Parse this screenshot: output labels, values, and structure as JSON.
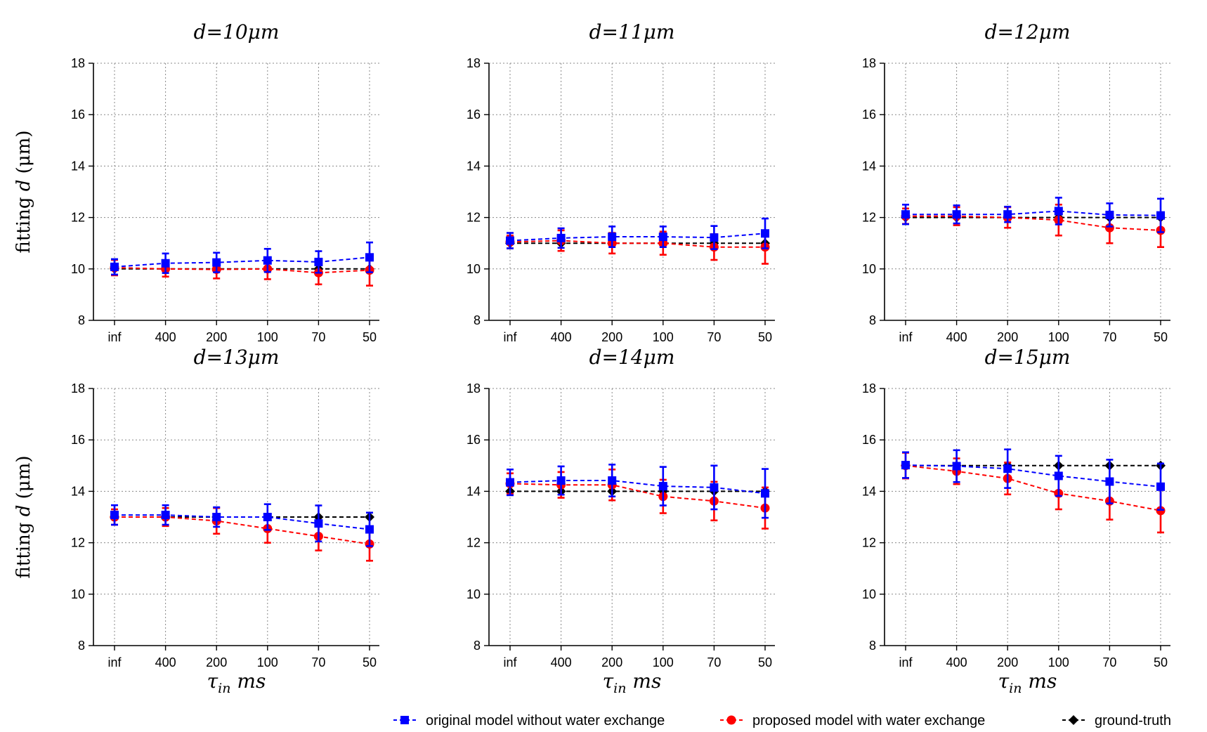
{
  "chart_data": {
    "type": "line",
    "x_categories": [
      "inf",
      "400",
      "200",
      "100",
      "70",
      "50"
    ],
    "ylim": [
      8,
      18
    ],
    "yticks": [
      "8",
      "10",
      "12",
      "14",
      "16",
      "18"
    ],
    "ylabel_prefix": "fitting ",
    "ylabel_var": "d",
    "ylabel_unit": " (μm)",
    "xlabel": "τ",
    "xlabel_sub": "in",
    "xlabel_unit": " ms",
    "grid": true,
    "legend": [
      {
        "key": "original",
        "label": "original model without water exchange",
        "color": "#0000ff",
        "marker": "square"
      },
      {
        "key": "proposed",
        "label": "proposed model with water exchange",
        "color": "#ff0000",
        "marker": "circle"
      },
      {
        "key": "truth",
        "label": "ground-truth",
        "color": "#000000",
        "marker": "diamond"
      }
    ],
    "panels": [
      {
        "title_var": "d",
        "title_rest": "=10μm",
        "series": [
          {
            "key": "original",
            "values": [
              10.08,
              10.22,
              10.25,
              10.33,
              10.27,
              10.45
            ],
            "errors": [
              0.3,
              0.38,
              0.38,
              0.45,
              0.42,
              0.58
            ]
          },
          {
            "key": "proposed",
            "values": [
              10.05,
              10.0,
              9.98,
              10.0,
              9.85,
              9.95
            ],
            "errors": [
              0.3,
              0.3,
              0.35,
              0.4,
              0.45,
              0.6
            ]
          },
          {
            "key": "truth",
            "values": [
              10,
              10,
              10,
              10,
              10,
              10
            ],
            "errors": [
              0,
              0,
              0,
              0,
              0,
              0
            ]
          }
        ]
      },
      {
        "title_var": "d",
        "title_rest": "=11μm",
        "series": [
          {
            "key": "original",
            "values": [
              11.1,
              11.2,
              11.25,
              11.25,
              11.22,
              11.38
            ],
            "errors": [
              0.3,
              0.38,
              0.4,
              0.4,
              0.45,
              0.58
            ]
          },
          {
            "key": "proposed",
            "values": [
              11.05,
              11.1,
              11.0,
              11.0,
              10.85,
              10.85
            ],
            "errors": [
              0.25,
              0.4,
              0.4,
              0.45,
              0.5,
              0.65
            ]
          },
          {
            "key": "truth",
            "values": [
              11,
              11,
              11,
              11,
              11,
              11
            ],
            "errors": [
              0,
              0,
              0,
              0,
              0,
              0
            ]
          }
        ]
      },
      {
        "title_var": "d",
        "title_rest": "=12μm",
        "series": [
          {
            "key": "original",
            "values": [
              12.12,
              12.12,
              12.12,
              12.25,
              12.1,
              12.08
            ],
            "errors": [
              0.38,
              0.35,
              0.3,
              0.52,
              0.45,
              0.65
            ]
          },
          {
            "key": "proposed",
            "values": [
              12.05,
              12.05,
              12.0,
              11.9,
              11.6,
              11.5
            ],
            "errors": [
              0.3,
              0.35,
              0.4,
              0.6,
              0.6,
              0.65
            ]
          },
          {
            "key": "truth",
            "values": [
              12,
              12,
              12,
              12,
              12,
              12
            ],
            "errors": [
              0,
              0,
              0,
              0,
              0,
              0
            ]
          }
        ]
      },
      {
        "title_var": "d",
        "title_rest": "=13μm",
        "series": [
          {
            "key": "original",
            "values": [
              13.08,
              13.08,
              13.0,
              13.0,
              12.75,
              12.52
            ],
            "errors": [
              0.38,
              0.38,
              0.38,
              0.5,
              0.7,
              0.65
            ]
          },
          {
            "key": "proposed",
            "values": [
              13.0,
              13.0,
              12.85,
              12.55,
              12.25,
              11.95
            ],
            "errors": [
              0.3,
              0.35,
              0.5,
              0.55,
              0.55,
              0.65
            ]
          },
          {
            "key": "truth",
            "values": [
              13,
              13,
              13,
              13,
              13,
              13
            ],
            "errors": [
              0,
              0,
              0,
              0,
              0,
              0
            ]
          }
        ]
      },
      {
        "title_var": "d",
        "title_rest": "=14μm",
        "series": [
          {
            "key": "original",
            "values": [
              14.35,
              14.42,
              14.42,
              14.2,
              14.15,
              13.92
            ],
            "errors": [
              0.5,
              0.55,
              0.62,
              0.75,
              0.85,
              0.95
            ]
          },
          {
            "key": "proposed",
            "values": [
              14.3,
              14.25,
              14.25,
              13.8,
              13.62,
              13.35
            ],
            "errors": [
              0.4,
              0.5,
              0.6,
              0.65,
              0.75,
              0.8
            ]
          },
          {
            "key": "truth",
            "values": [
              14,
              14,
              14,
              14,
              14,
              14
            ],
            "errors": [
              0,
              0,
              0,
              0,
              0,
              0
            ]
          }
        ]
      },
      {
        "title_var": "d",
        "title_rest": "=15μm",
        "series": [
          {
            "key": "original",
            "values": [
              15.02,
              14.98,
              14.88,
              14.6,
              14.38,
              14.18
            ],
            "errors": [
              0.5,
              0.62,
              0.75,
              0.78,
              0.85,
              0.9
            ]
          },
          {
            "key": "proposed",
            "values": [
              15.0,
              14.78,
              14.5,
              13.92,
              13.62,
              13.25
            ],
            "errors": [
              0.5,
              0.5,
              0.62,
              0.62,
              0.72,
              0.85
            ]
          },
          {
            "key": "truth",
            "values": [
              15,
              15,
              15,
              15,
              15,
              15
            ],
            "errors": [
              0,
              0,
              0,
              0,
              0,
              0
            ]
          }
        ]
      }
    ]
  }
}
